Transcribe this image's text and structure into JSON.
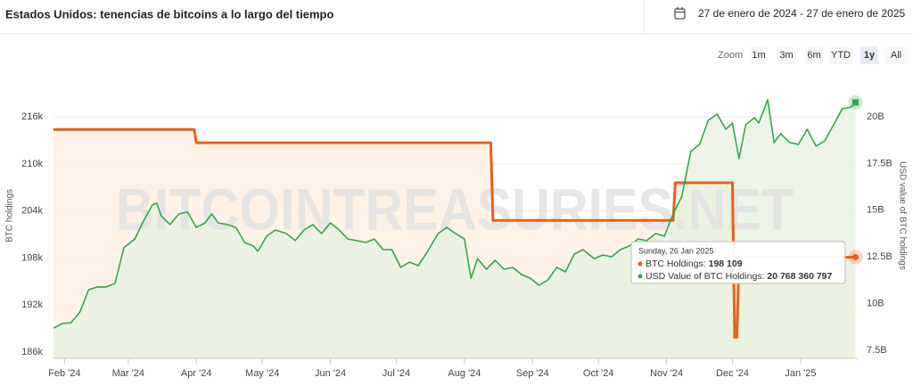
{
  "header": {
    "title": "Estados Unidos: tenencias de bitcoins a lo largo del tiempo",
    "date_range": "27 de enero de 2024 - 27 de enero de 2025"
  },
  "zoom": {
    "label": "Zoom",
    "buttons": [
      "1m",
      "3m",
      "6m",
      "YTD",
      "1y",
      "All"
    ],
    "selected": "1y"
  },
  "chart_data": {
    "type": "line",
    "watermark": "BITCOINTREASURIES.NET",
    "y_label": "BTC holdings",
    "y2_label": "USD value of BTC holdings",
    "xlim": [
      "2024-01-27",
      "2025-01-27"
    ],
    "xticks": [
      {
        "value": "2024-02-01",
        "label": "Feb '24"
      },
      {
        "value": "2024-03-01",
        "label": "Mar '24"
      },
      {
        "value": "2024-04-01",
        "label": "Apr '24"
      },
      {
        "value": "2024-05-01",
        "label": "May '24"
      },
      {
        "value": "2024-06-01",
        "label": "Jun '24"
      },
      {
        "value": "2024-07-01",
        "label": "Jul '24"
      },
      {
        "value": "2024-08-01",
        "label": "Aug '24"
      },
      {
        "value": "2024-09-01",
        "label": "Sep '24"
      },
      {
        "value": "2024-10-01",
        "label": "Oct '24"
      },
      {
        "value": "2024-11-01",
        "label": "Nov '24"
      },
      {
        "value": "2024-12-01",
        "label": "Dec '24"
      },
      {
        "value": "2025-01-01",
        "label": "Jan '25"
      }
    ],
    "ylim": [
      185200,
      220900
    ],
    "yticks": [
      {
        "value": 186000,
        "label": "186k"
      },
      {
        "value": 192000,
        "label": "192k"
      },
      {
        "value": 198000,
        "label": "198k"
      },
      {
        "value": 204000,
        "label": "204k"
      },
      {
        "value": 210000,
        "label": "210k"
      },
      {
        "value": 216000,
        "label": "216k"
      }
    ],
    "y2lim": [
      7070000000.0,
      22050000000.0
    ],
    "y2ticks": [
      {
        "value": 7500000000.0,
        "label": "7.5B"
      },
      {
        "value": 10000000000.0,
        "label": "10B"
      },
      {
        "value": 12500000000.0,
        "label": "12.5B"
      },
      {
        "value": 15000000000.0,
        "label": "15B"
      },
      {
        "value": 17500000000.0,
        "label": "17.5B"
      },
      {
        "value": 20000000000.0,
        "label": "20B"
      }
    ],
    "grid": true,
    "series": [
      {
        "name": "BTC Holdings",
        "color": "#e8601c",
        "fill": "#fdeedd",
        "step": true,
        "x": [
          "2024-01-27",
          "2024-03-31",
          "2024-04-01",
          "2024-08-13",
          "2024-08-14",
          "2024-11-04",
          "2024-11-05",
          "2024-12-01",
          "2024-12-02",
          "2024-12-03",
          "2024-12-04",
          "2025-01-26"
        ],
        "values": [
          214400,
          214400,
          212700,
          212700,
          202800,
          202800,
          207600,
          207600,
          187900,
          187900,
          198109,
          198109
        ]
      },
      {
        "name": "USD Value of BTC Holdings",
        "color": "#2ea84a",
        "fill": "#e6f2df",
        "axis": "y2",
        "x": [
          "2024-01-27",
          "2024-01-31",
          "2024-02-04",
          "2024-02-08",
          "2024-02-12",
          "2024-02-16",
          "2024-02-20",
          "2024-02-24",
          "2024-02-28",
          "2024-03-04",
          "2024-03-08",
          "2024-03-12",
          "2024-03-14",
          "2024-03-16",
          "2024-03-20",
          "2024-03-24",
          "2024-03-28",
          "2024-04-01",
          "2024-04-05",
          "2024-04-08",
          "2024-04-11",
          "2024-04-15",
          "2024-04-19",
          "2024-04-23",
          "2024-04-27",
          "2024-04-29",
          "2024-05-03",
          "2024-05-07",
          "2024-05-12",
          "2024-05-16",
          "2024-05-20",
          "2024-05-24",
          "2024-05-28",
          "2024-06-01",
          "2024-06-05",
          "2024-06-09",
          "2024-06-13",
          "2024-06-17",
          "2024-06-21",
          "2024-06-25",
          "2024-06-29",
          "2024-07-03",
          "2024-07-07",
          "2024-07-11",
          "2024-07-15",
          "2024-07-20",
          "2024-07-24",
          "2024-07-28",
          "2024-08-01",
          "2024-08-04",
          "2024-08-07",
          "2024-08-11",
          "2024-08-15",
          "2024-08-19",
          "2024-08-23",
          "2024-08-27",
          "2024-08-31",
          "2024-09-04",
          "2024-09-08",
          "2024-09-12",
          "2024-09-16",
          "2024-09-20",
          "2024-09-24",
          "2024-09-29",
          "2024-10-03",
          "2024-10-07",
          "2024-10-11",
          "2024-10-15",
          "2024-10-19",
          "2024-10-23",
          "2024-10-27",
          "2024-10-31",
          "2024-11-04",
          "2024-11-08",
          "2024-11-12",
          "2024-11-16",
          "2024-11-20",
          "2024-11-24",
          "2024-11-28",
          "2024-12-01",
          "2024-12-04",
          "2024-12-07",
          "2024-12-11",
          "2024-12-13",
          "2024-12-17",
          "2024-12-20",
          "2024-12-23",
          "2024-12-27",
          "2024-12-31",
          "2025-01-04",
          "2025-01-08",
          "2025-01-12",
          "2025-01-16",
          "2025-01-20",
          "2025-01-24",
          "2025-01-26"
        ],
        "values": [
          8690000000.0,
          8930000000.0,
          8980000000.0,
          9550000000.0,
          10740000000.0,
          10890000000.0,
          10890000000.0,
          11080000000.0,
          12990000000.0,
          13460000000.0,
          14420000000.0,
          15280000000.0,
          15370000000.0,
          14700000000.0,
          14230000000.0,
          14800000000.0,
          14900000000.0,
          14080000000.0,
          14320000000.0,
          14800000000.0,
          14320000000.0,
          14230000000.0,
          14080000000.0,
          13270000000.0,
          13080000000.0,
          12800000000.0,
          13610000000.0,
          13940000000.0,
          13750000000.0,
          13370000000.0,
          13940000000.0,
          14230000000.0,
          13750000000.0,
          14320000000.0,
          13940000000.0,
          13460000000.0,
          13370000000.0,
          13270000000.0,
          13460000000.0,
          12890000000.0,
          12890000000.0,
          11940000000.0,
          12220000000.0,
          12030000000.0,
          12750000000.0,
          13750000000.0,
          14080000000.0,
          13750000000.0,
          13460000000.0,
          11360000000.0,
          12410000000.0,
          11840000000.0,
          12320000000.0,
          11840000000.0,
          11940000000.0,
          11560000000.0,
          11360000000.0,
          10980000000.0,
          11270000000.0,
          11940000000.0,
          11700000000.0,
          12650000000.0,
          12890000000.0,
          12410000000.0,
          12600000000.0,
          12510000000.0,
          12890000000.0,
          13080000000.0,
          13460000000.0,
          13370000000.0,
          13750000000.0,
          13610000000.0,
          14800000000.0,
          15750000000.0,
          18140000000.0,
          18520000000.0,
          19810000000.0,
          20140000000.0,
          19330000000.0,
          19670000000.0,
          17760000000.0,
          19570000000.0,
          19950000000.0,
          19670000000.0,
          20910000000.0,
          18620000000.0,
          19090000000.0,
          18620000000.0,
          18520000000.0,
          19330000000.0,
          18430000000.0,
          18710000000.0,
          19570000000.0,
          20430000000.0,
          20520000000.0,
          20768360797
        ]
      }
    ],
    "tooltip": {
      "title": "Sunday, 26 Jan 2025",
      "entries": [
        {
          "label": "BTC Holdings: ",
          "value_label": "198 109"
        },
        {
          "label": "USD Value of BTC Holdings: ",
          "value_label": "20 768 360 797"
        }
      ]
    }
  }
}
